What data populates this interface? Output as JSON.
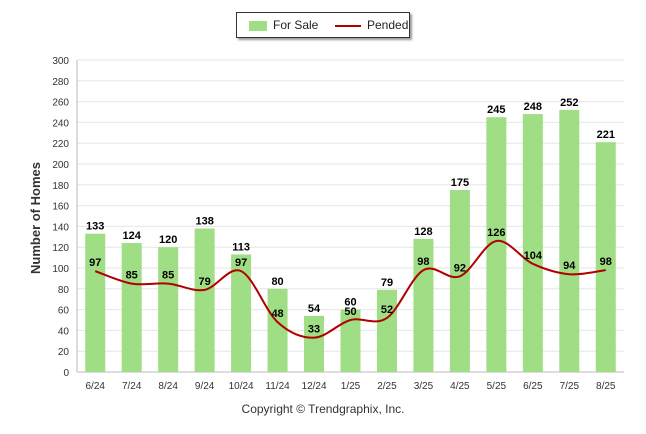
{
  "legend": {
    "for_sale": "For Sale",
    "pended": "Pended"
  },
  "footer": {
    "copyright": "Copyright © Trendgraphix, Inc."
  },
  "colors": {
    "bar": "#9fde84",
    "line": "#b00000",
    "grid": "#e6e6e6"
  },
  "chart_data": {
    "type": "bar",
    "categories": [
      "6/24",
      "7/24",
      "8/24",
      "9/24",
      "10/24",
      "11/24",
      "12/24",
      "1/25",
      "2/25",
      "3/25",
      "4/25",
      "5/25",
      "6/25",
      "7/25",
      "8/25"
    ],
    "series": [
      {
        "name": "For Sale",
        "type": "bar",
        "values": [
          133,
          124,
          120,
          138,
          113,
          80,
          54,
          60,
          79,
          128,
          175,
          245,
          248,
          252,
          221
        ]
      },
      {
        "name": "Pended",
        "type": "line",
        "values": [
          97,
          85,
          85,
          79,
          97,
          48,
          33,
          50,
          52,
          98,
          92,
          126,
          104,
          94,
          98
        ]
      }
    ],
    "ylabel": "Number of Homes",
    "xlabel": "",
    "ylim": [
      0,
      300
    ],
    "yticks": [
      0,
      20,
      40,
      60,
      80,
      100,
      120,
      140,
      160,
      180,
      200,
      220,
      240,
      260,
      280,
      300
    ],
    "grid": true,
    "legend_position": "top-center"
  }
}
